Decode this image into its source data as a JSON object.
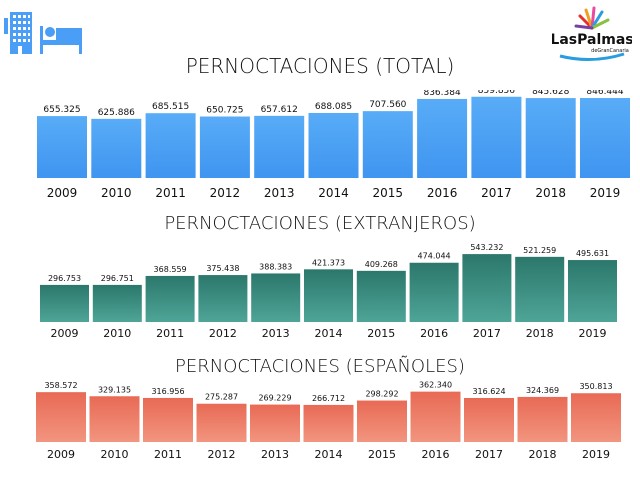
{
  "logo": {
    "text": "LasPalmas",
    "subtext": "deGranCanaria"
  },
  "icons": [
    "hotel-building-icon",
    "bed-icon"
  ],
  "chart_data": [
    {
      "type": "bar",
      "title": "PERNOCTACIONES (TOTAL)",
      "categories": [
        "2009",
        "2010",
        "2011",
        "2012",
        "2013",
        "2014",
        "2015",
        "2016",
        "2017",
        "2018",
        "2019"
      ],
      "values": [
        655325,
        625886,
        685515,
        650725,
        657612,
        688085,
        707560,
        836384,
        859856,
        845628,
        846444
      ],
      "labels": [
        "655.325",
        "625.886",
        "685.515",
        "650.725",
        "657.612",
        "688.085",
        "707.560",
        "836.384",
        "859.856",
        "845.628",
        "846.444"
      ],
      "color_top": "#58acf7",
      "color_bottom": "#3f95f0",
      "grid": false
    },
    {
      "type": "bar",
      "title": "PERNOCTACIONES (EXTRANJEROS)",
      "categories": [
        "2009",
        "2010",
        "2011",
        "2012",
        "2013",
        "2014",
        "2015",
        "2016",
        "2017",
        "2018",
        "2019"
      ],
      "values": [
        296753,
        296751,
        368559,
        375438,
        388383,
        421373,
        409268,
        474044,
        543232,
        521259,
        495631
      ],
      "labels": [
        "296.753",
        "296.751",
        "368.559",
        "375.438",
        "388.383",
        "421.373",
        "409.268",
        "474.044",
        "543.232",
        "521.259",
        "495.631"
      ],
      "color_top": "#2c776c",
      "color_bottom": "#4ea597",
      "grid": false
    },
    {
      "type": "bar",
      "title": "PERNOCTACIONES (ESPAÑOLES)",
      "categories": [
        "2009",
        "2010",
        "2011",
        "2012",
        "2013",
        "2014",
        "2015",
        "2016",
        "2017",
        "2018",
        "2019"
      ],
      "values": [
        358572,
        329135,
        316956,
        275287,
        269229,
        266712,
        298292,
        362340,
        316624,
        324369,
        350813
      ],
      "labels": [
        "358.572",
        "329.135",
        "316.956",
        "275.287",
        "269.229",
        "266.712",
        "298.292",
        "362.340",
        "316.624",
        "324.369",
        "350.813"
      ],
      "color_top": "#e86a55",
      "color_bottom": "#f2957f",
      "grid": false
    }
  ]
}
